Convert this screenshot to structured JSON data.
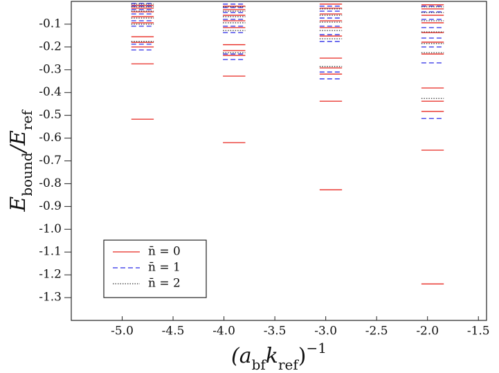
{
  "chart_data": {
    "type": "segments",
    "ylabel": [
      {
        "text": "E"
      },
      {
        "text": "bound",
        "sub": true
      },
      {
        "text": "/E"
      },
      {
        "text": "ref",
        "sub": true
      }
    ],
    "xlabel": [
      {
        "text": "(a"
      },
      {
        "text": "bf",
        "sub": true
      },
      {
        "text": "k"
      },
      {
        "text": "ref",
        "sub": true
      },
      {
        "text": ")"
      },
      {
        "text": "−1",
        "sup": true
      }
    ],
    "xlim": [
      -5.5,
      -1.42
    ],
    "ylim": [
      -1.4,
      0
    ],
    "xticks": [
      {
        "value": -5,
        "label": "-5.0"
      },
      -4.5,
      {
        "value": -4,
        "label": "-4.0"
      },
      -3.5,
      {
        "value": -3,
        "label": "-3.0"
      },
      -2.5,
      {
        "value": -2,
        "label": "-2.0"
      },
      -1.5
    ],
    "yticks": [
      -0.1,
      -0.2,
      -0.3,
      -0.4,
      -0.5,
      -0.6,
      -0.7,
      -0.8,
      -0.9,
      {
        "value": -1,
        "label": "-1.0"
      },
      -1.1,
      -1.2,
      -1.3
    ],
    "legend": "lower left",
    "series": [
      {
        "name": "n̄ = 0",
        "color": "#e8261f",
        "style": "solid",
        "x": [
          -4.8,
          -4.8,
          -4.8,
          -4.8,
          -4.8,
          -4.8,
          -4.8,
          -4.8,
          -4.8,
          -4.8,
          -3.9,
          -3.9,
          -3.9,
          -3.9,
          -3.9,
          -3.9,
          -3.9,
          -3.9,
          -3.9,
          -3.9,
          -2.95,
          -2.95,
          -2.95,
          -2.95,
          -2.95,
          -2.95,
          -2.95,
          -2.95,
          -2.95,
          -2.95,
          -2.95,
          -1.95,
          -1.95,
          -1.95,
          -1.95,
          -1.95,
          -1.95,
          -1.95,
          -1.95,
          -1.95,
          -1.95,
          -1.95,
          -1.95
        ],
        "values": [
          -0.517,
          -0.274,
          -0.2,
          -0.18,
          -0.155,
          -0.094,
          -0.067,
          -0.046,
          -0.03,
          -0.018,
          -0.62,
          -0.328,
          -0.237,
          -0.216,
          -0.19,
          -0.115,
          -0.085,
          -0.061,
          -0.036,
          -0.021,
          -0.827,
          -0.438,
          -0.319,
          -0.292,
          -0.249,
          -0.152,
          -0.115,
          -0.085,
          -0.055,
          -0.03,
          -0.012,
          -1.24,
          -0.653,
          -0.483,
          -0.438,
          -0.38,
          -0.231,
          -0.179,
          -0.137,
          -0.094,
          -0.061,
          -0.033,
          -0.015
        ]
      },
      {
        "name": "n̄ = 1",
        "color": "#2a2ae6",
        "style": "dashed",
        "x": [
          -4.8,
          -4.8,
          -4.8,
          -4.8,
          -4.8,
          -4.8,
          -4.8,
          -4.8,
          -3.9,
          -3.9,
          -3.9,
          -3.9,
          -3.9,
          -3.9,
          -3.9,
          -3.9,
          -2.95,
          -2.95,
          -2.95,
          -2.95,
          -2.95,
          -2.95,
          -2.95,
          -2.95,
          -1.95,
          -1.95,
          -1.95,
          -1.95,
          -1.95,
          -1.95,
          -1.95,
          -1.95
        ],
        "values": [
          -0.213,
          -0.188,
          -0.109,
          -0.085,
          -0.055,
          -0.036,
          -0.021,
          -0.009,
          -0.255,
          -0.231,
          -0.137,
          -0.109,
          -0.079,
          -0.049,
          -0.027,
          -0.012,
          -0.34,
          -0.31,
          -0.176,
          -0.146,
          -0.109,
          -0.073,
          -0.043,
          -0.021,
          -0.514,
          -0.27,
          -0.2,
          -0.161,
          -0.115,
          -0.079,
          -0.046,
          -0.021
        ]
      },
      {
        "name": "n̄ = 2",
        "color": "#333333",
        "style": "dotted",
        "x": [
          -4.8,
          -4.8,
          -4.8,
          -4.8,
          -4.8,
          -4.8,
          -3.9,
          -3.9,
          -3.9,
          -3.9,
          -3.9,
          -3.9,
          -2.95,
          -2.95,
          -2.95,
          -2.95,
          -2.95,
          -2.95,
          -1.95,
          -1.95,
          -1.95,
          -1.95,
          -1.95,
          -1.95,
          -1.95
        ],
        "values": [
          -0.176,
          -0.1,
          -0.073,
          -0.043,
          -0.024,
          -0.012,
          -0.225,
          -0.128,
          -0.094,
          -0.067,
          -0.043,
          -0.024,
          -0.286,
          -0.164,
          -0.128,
          -0.091,
          -0.061,
          -0.033,
          -0.426,
          -0.225,
          -0.185,
          -0.134,
          -0.085,
          -0.049,
          -0.024
        ]
      }
    ]
  }
}
